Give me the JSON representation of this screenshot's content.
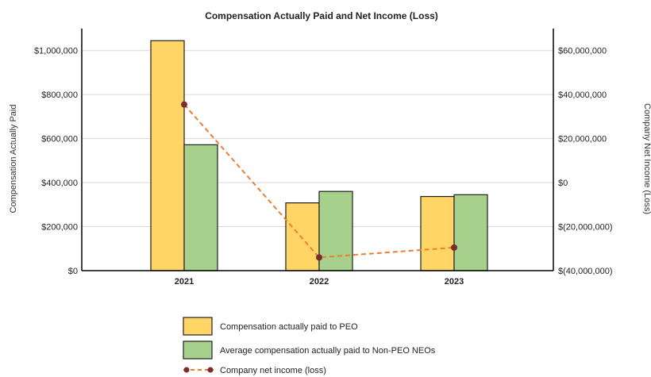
{
  "chart_data": {
    "type": "bar",
    "title": "Compensation Actually Paid and Net Income (Loss)",
    "categories": [
      "2021",
      "2022",
      "2023"
    ],
    "ylabel": "Compensation Actually Paid",
    "y2label": "Company Net Income (Loss)",
    "ylim": [
      0,
      1100000
    ],
    "y2lim": [
      -40000000,
      70000000
    ],
    "yticks": [
      0,
      200000,
      400000,
      600000,
      800000,
      1000000
    ],
    "ytick_labels": [
      "$0",
      "$200,000",
      "$400,000",
      "$600,000",
      "$800,000",
      "$1,000,000"
    ],
    "y2ticks": [
      -40000000,
      -20000000,
      0,
      20000000,
      40000000,
      60000000
    ],
    "y2tick_labels": [
      "$(40,000,000)",
      "$(20,000,000)",
      "$0",
      "$20,000,000",
      "$40,000,000",
      "$60,000,000"
    ],
    "grid": true,
    "legend_position": "bottom",
    "series": [
      {
        "name": "Compensation actually paid to PEO",
        "kind": "bar",
        "axis": "left",
        "color": "#FFD666",
        "values": [
          1045000,
          308000,
          337000
        ]
      },
      {
        "name": "Average compensation actually paid to Non-PEO NEOs",
        "kind": "bar",
        "axis": "left",
        "color": "#A8D08D",
        "values": [
          572000,
          360000,
          345000
        ]
      },
      {
        "name": "Company net income (loss)",
        "kind": "line",
        "axis": "right",
        "color": "#ED7D31",
        "marker_color": "#7B2C2C",
        "values": [
          35500000,
          -34000000,
          -29500000
        ]
      }
    ]
  }
}
